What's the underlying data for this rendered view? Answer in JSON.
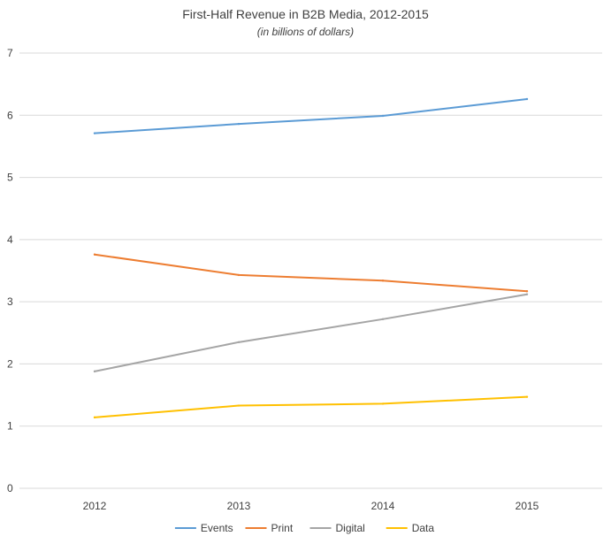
{
  "chart_data": {
    "type": "line",
    "title": "First-Half Revenue in B2B Media, 2012-2015",
    "subtitle": "(in billions of dollars)",
    "categories": [
      "2012",
      "2013",
      "2014",
      "2015"
    ],
    "ylim": [
      0,
      7
    ],
    "yticks": [
      "0",
      "1",
      "2",
      "3",
      "4",
      "5",
      "6",
      "7"
    ],
    "grid": true,
    "legend_position": "bottom",
    "series": [
      {
        "name": "Events",
        "color": "#5b9bd5",
        "values": [
          5.71,
          5.86,
          5.99,
          6.26
        ]
      },
      {
        "name": "Print",
        "color": "#ed7d31",
        "values": [
          3.76,
          3.43,
          3.34,
          3.17
        ]
      },
      {
        "name": "Digital",
        "color": "#a5a5a5",
        "values": [
          1.88,
          2.35,
          2.72,
          3.12
        ]
      },
      {
        "name": "Data",
        "color": "#ffc000",
        "values": [
          1.14,
          1.33,
          1.36,
          1.47
        ]
      }
    ]
  }
}
